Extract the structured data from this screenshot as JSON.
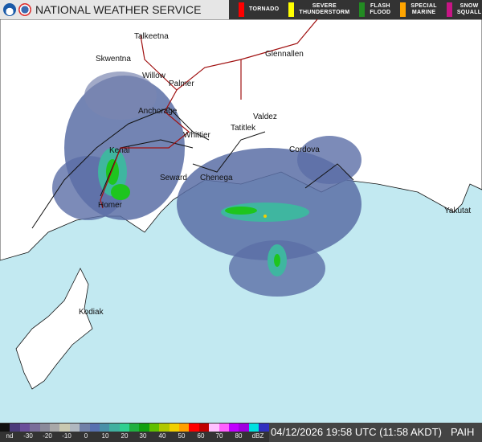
{
  "header": {
    "title": "NATIONAL WEATHER SERVICE",
    "logos": [
      "noaa-logo",
      "nws-logo"
    ]
  },
  "warnings_legend": [
    {
      "label": "TORNADO",
      "color": "#ff0000"
    },
    {
      "label": "SEVERE THUNDERSTORM",
      "color": "#ffff00"
    },
    {
      "label": "FLASH FLOOD",
      "color": "#228b22"
    },
    {
      "label": "SPECIAL MARINE",
      "color": "#ffa500"
    },
    {
      "label": "SNOW SQUALL",
      "color": "#c71585"
    }
  ],
  "map": {
    "colors": {
      "ocean": "#c2e9f1",
      "land": "#ffffff",
      "radar_light": "#5b6ea6",
      "radar_mid": "#3fb6a0",
      "radar_strong": "#1ec51e",
      "road": "#a01010",
      "border": "#111111"
    },
    "places": [
      "Talkeetna",
      "Skwentna",
      "Willow",
      "Palmer",
      "Glennallen",
      "Anchorage",
      "Whittier",
      "Valdez",
      "Tatitlek",
      "Cordova",
      "Kenai",
      "Seward",
      "Chenega",
      "Homer",
      "Kodiak",
      "Yakutat"
    ]
  },
  "colorbar": {
    "unit": "dBZ",
    "labels": [
      "nd",
      "-30",
      "-20",
      "-10",
      "0",
      "10",
      "20",
      "30",
      "40",
      "50",
      "60",
      "70",
      "80"
    ],
    "colors": [
      "#111111",
      "#4a3a7a",
      "#6a4e9a",
      "#7a6e9a",
      "#8a8a9a",
      "#a8a8a8",
      "#c8c8b0",
      "#b0b8c0",
      "#7080a8",
      "#5870b0",
      "#4890a8",
      "#40b0a0",
      "#30d090",
      "#20b040",
      "#10a010",
      "#60c000",
      "#b0c800",
      "#f0d000",
      "#ffa000",
      "#ff0000",
      "#c00000",
      "#ffc0ff",
      "#ff60ff",
      "#c000ff",
      "#a000e0",
      "#00e0e0",
      "#3030c0"
    ]
  },
  "status": {
    "timestamp": "04/12/2026 19:58 UTC (11:58 AKDT)",
    "station": "PAIH"
  }
}
